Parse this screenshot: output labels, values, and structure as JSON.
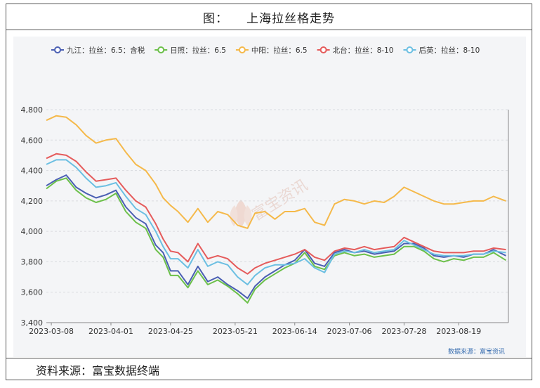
{
  "header": {
    "label": "图：",
    "title": "上海拉丝格走势"
  },
  "footer": {
    "source_label": "资料来源：富宝数据终端"
  },
  "watermark": {
    "text": "富宝资讯"
  },
  "source_note": "数据来源：富宝资讯",
  "chart_data": {
    "type": "line",
    "title": "上海拉丝格走势",
    "xlabel": "",
    "ylabel": "",
    "ylim": [
      3400,
      4800
    ],
    "yticks": [
      3400,
      3600,
      3800,
      4000,
      4200,
      4400,
      4600,
      4800
    ],
    "ytick_labels": [
      "3,400",
      "3,600",
      "3,800",
      "4,000",
      "4,200",
      "4,400",
      "4,600",
      "4,800"
    ],
    "xlim": [
      "2023-03-06",
      "2023-09-08"
    ],
    "xticks": [
      "2023-03-08",
      "2023-04-01",
      "2023-04-25",
      "2023-05-21",
      "2023-06-14",
      "2023-07-06",
      "2023-07-28",
      "2023-08-19"
    ],
    "grid": true,
    "legend_position": "top-left",
    "series": [
      {
        "name": "九江：拉丝：6.5：含税",
        "color": "#4a5fb3",
        "points": [
          [
            "2023-03-06",
            4300
          ],
          [
            "2023-03-10",
            4340
          ],
          [
            "2023-03-14",
            4370
          ],
          [
            "2023-03-18",
            4290
          ],
          [
            "2023-03-22",
            4250
          ],
          [
            "2023-03-26",
            4220
          ],
          [
            "2023-03-30",
            4240
          ],
          [
            "2023-04-03",
            4270
          ],
          [
            "2023-04-07",
            4160
          ],
          [
            "2023-04-11",
            4090
          ],
          [
            "2023-04-15",
            4050
          ],
          [
            "2023-04-19",
            3910
          ],
          [
            "2023-04-22",
            3860
          ],
          [
            "2023-04-25",
            3740
          ],
          [
            "2023-04-28",
            3740
          ],
          [
            "2023-05-02",
            3650
          ],
          [
            "2023-05-06",
            3770
          ],
          [
            "2023-05-10",
            3670
          ],
          [
            "2023-05-14",
            3700
          ],
          [
            "2023-05-18",
            3650
          ],
          [
            "2023-05-22",
            3610
          ],
          [
            "2023-05-26",
            3560
          ],
          [
            "2023-05-29",
            3640
          ],
          [
            "2023-06-02",
            3700
          ],
          [
            "2023-06-06",
            3740
          ],
          [
            "2023-06-10",
            3780
          ],
          [
            "2023-06-14",
            3810
          ],
          [
            "2023-06-18",
            3880
          ],
          [
            "2023-06-22",
            3790
          ],
          [
            "2023-06-26",
            3770
          ],
          [
            "2023-06-30",
            3860
          ],
          [
            "2023-07-04",
            3880
          ],
          [
            "2023-07-08",
            3860
          ],
          [
            "2023-07-12",
            3870
          ],
          [
            "2023-07-16",
            3850
          ],
          [
            "2023-07-20",
            3860
          ],
          [
            "2023-07-24",
            3870
          ],
          [
            "2023-07-28",
            3920
          ],
          [
            "2023-08-01",
            3920
          ],
          [
            "2023-08-05",
            3890
          ],
          [
            "2023-08-09",
            3840
          ],
          [
            "2023-08-13",
            3830
          ],
          [
            "2023-08-17",
            3840
          ],
          [
            "2023-08-21",
            3830
          ],
          [
            "2023-08-25",
            3850
          ],
          [
            "2023-08-29",
            3850
          ],
          [
            "2023-09-02",
            3880
          ],
          [
            "2023-09-07",
            3840
          ]
        ]
      },
      {
        "name": "日照：拉丝：6.5",
        "color": "#6cc04a",
        "points": [
          [
            "2023-03-06",
            4280
          ],
          [
            "2023-03-10",
            4330
          ],
          [
            "2023-03-14",
            4350
          ],
          [
            "2023-03-18",
            4270
          ],
          [
            "2023-03-22",
            4220
          ],
          [
            "2023-03-26",
            4190
          ],
          [
            "2023-03-30",
            4210
          ],
          [
            "2023-04-03",
            4250
          ],
          [
            "2023-04-07",
            4130
          ],
          [
            "2023-04-11",
            4060
          ],
          [
            "2023-04-15",
            4020
          ],
          [
            "2023-04-19",
            3880
          ],
          [
            "2023-04-22",
            3830
          ],
          [
            "2023-04-25",
            3710
          ],
          [
            "2023-04-28",
            3710
          ],
          [
            "2023-05-02",
            3630
          ],
          [
            "2023-05-06",
            3740
          ],
          [
            "2023-05-10",
            3650
          ],
          [
            "2023-05-14",
            3680
          ],
          [
            "2023-05-18",
            3640
          ],
          [
            "2023-05-22",
            3590
          ],
          [
            "2023-05-26",
            3530
          ],
          [
            "2023-05-29",
            3620
          ],
          [
            "2023-06-02",
            3680
          ],
          [
            "2023-06-06",
            3720
          ],
          [
            "2023-06-10",
            3760
          ],
          [
            "2023-06-14",
            3790
          ],
          [
            "2023-06-18",
            3860
          ],
          [
            "2023-06-22",
            3770
          ],
          [
            "2023-06-26",
            3750
          ],
          [
            "2023-06-30",
            3840
          ],
          [
            "2023-07-04",
            3860
          ],
          [
            "2023-07-08",
            3840
          ],
          [
            "2023-07-12",
            3850
          ],
          [
            "2023-07-16",
            3830
          ],
          [
            "2023-07-20",
            3840
          ],
          [
            "2023-07-24",
            3850
          ],
          [
            "2023-07-28",
            3900
          ],
          [
            "2023-08-01",
            3900
          ],
          [
            "2023-08-05",
            3870
          ],
          [
            "2023-08-09",
            3820
          ],
          [
            "2023-08-13",
            3800
          ],
          [
            "2023-08-17",
            3820
          ],
          [
            "2023-08-21",
            3810
          ],
          [
            "2023-08-25",
            3830
          ],
          [
            "2023-08-29",
            3830
          ],
          [
            "2023-09-02",
            3860
          ],
          [
            "2023-09-07",
            3810
          ]
        ]
      },
      {
        "name": "中阳：拉丝：6.5",
        "color": "#f5b94a",
        "points": [
          [
            "2023-03-06",
            4730
          ],
          [
            "2023-03-10",
            4760
          ],
          [
            "2023-03-14",
            4750
          ],
          [
            "2023-03-18",
            4700
          ],
          [
            "2023-03-22",
            4630
          ],
          [
            "2023-03-26",
            4580
          ],
          [
            "2023-03-30",
            4600
          ],
          [
            "2023-04-03",
            4610
          ],
          [
            "2023-04-07",
            4520
          ],
          [
            "2023-04-11",
            4440
          ],
          [
            "2023-04-15",
            4400
          ],
          [
            "2023-04-19",
            4310
          ],
          [
            "2023-04-22",
            4220
          ],
          [
            "2023-04-25",
            4170
          ],
          [
            "2023-04-28",
            4130
          ],
          [
            "2023-05-02",
            4060
          ],
          [
            "2023-05-06",
            4150
          ],
          [
            "2023-05-10",
            4060
          ],
          [
            "2023-05-14",
            4130
          ],
          [
            "2023-05-18",
            4110
          ],
          [
            "2023-05-22",
            4040
          ],
          [
            "2023-05-26",
            4020
          ],
          [
            "2023-05-29",
            4120
          ],
          [
            "2023-06-02",
            4130
          ],
          [
            "2023-06-06",
            4080
          ],
          [
            "2023-06-10",
            4130
          ],
          [
            "2023-06-14",
            4130
          ],
          [
            "2023-06-18",
            4150
          ],
          [
            "2023-06-22",
            4060
          ],
          [
            "2023-06-26",
            4040
          ],
          [
            "2023-06-30",
            4180
          ],
          [
            "2023-07-04",
            4210
          ],
          [
            "2023-07-08",
            4200
          ],
          [
            "2023-07-12",
            4180
          ],
          [
            "2023-07-16",
            4200
          ],
          [
            "2023-07-20",
            4190
          ],
          [
            "2023-07-24",
            4230
          ],
          [
            "2023-07-28",
            4290
          ],
          [
            "2023-08-01",
            4260
          ],
          [
            "2023-08-05",
            4230
          ],
          [
            "2023-08-09",
            4200
          ],
          [
            "2023-08-13",
            4180
          ],
          [
            "2023-08-17",
            4180
          ],
          [
            "2023-08-21",
            4190
          ],
          [
            "2023-08-25",
            4200
          ],
          [
            "2023-08-29",
            4200
          ],
          [
            "2023-09-02",
            4230
          ],
          [
            "2023-09-07",
            4200
          ]
        ]
      },
      {
        "name": "北台：拉丝：8-10",
        "color": "#e55b5b",
        "points": [
          [
            "2023-03-06",
            4480
          ],
          [
            "2023-03-10",
            4510
          ],
          [
            "2023-03-14",
            4500
          ],
          [
            "2023-03-18",
            4460
          ],
          [
            "2023-03-22",
            4390
          ],
          [
            "2023-03-26",
            4330
          ],
          [
            "2023-03-30",
            4340
          ],
          [
            "2023-04-03",
            4350
          ],
          [
            "2023-04-07",
            4270
          ],
          [
            "2023-04-11",
            4200
          ],
          [
            "2023-04-15",
            4160
          ],
          [
            "2023-04-19",
            4050
          ],
          [
            "2023-04-22",
            3950
          ],
          [
            "2023-04-25",
            3870
          ],
          [
            "2023-04-28",
            3860
          ],
          [
            "2023-05-02",
            3800
          ],
          [
            "2023-05-06",
            3920
          ],
          [
            "2023-05-10",
            3820
          ],
          [
            "2023-05-14",
            3840
          ],
          [
            "2023-05-18",
            3820
          ],
          [
            "2023-05-22",
            3760
          ],
          [
            "2023-05-26",
            3720
          ],
          [
            "2023-05-29",
            3760
          ],
          [
            "2023-06-02",
            3790
          ],
          [
            "2023-06-06",
            3810
          ],
          [
            "2023-06-10",
            3830
          ],
          [
            "2023-06-14",
            3850
          ],
          [
            "2023-06-18",
            3880
          ],
          [
            "2023-06-22",
            3830
          ],
          [
            "2023-06-26",
            3810
          ],
          [
            "2023-06-30",
            3870
          ],
          [
            "2023-07-04",
            3890
          ],
          [
            "2023-07-08",
            3880
          ],
          [
            "2023-07-12",
            3900
          ],
          [
            "2023-07-16",
            3880
          ],
          [
            "2023-07-20",
            3890
          ],
          [
            "2023-07-24",
            3900
          ],
          [
            "2023-07-28",
            3960
          ],
          [
            "2023-08-01",
            3930
          ],
          [
            "2023-08-05",
            3900
          ],
          [
            "2023-08-09",
            3870
          ],
          [
            "2023-08-13",
            3860
          ],
          [
            "2023-08-17",
            3860
          ],
          [
            "2023-08-21",
            3860
          ],
          [
            "2023-08-25",
            3870
          ],
          [
            "2023-08-29",
            3870
          ],
          [
            "2023-09-02",
            3890
          ],
          [
            "2023-09-07",
            3880
          ]
        ]
      },
      {
        "name": "后英：拉丝：8-10",
        "color": "#6bbfe2",
        "points": [
          [
            "2023-03-06",
            4440
          ],
          [
            "2023-03-10",
            4470
          ],
          [
            "2023-03-14",
            4470
          ],
          [
            "2023-03-18",
            4420
          ],
          [
            "2023-03-22",
            4350
          ],
          [
            "2023-03-26",
            4290
          ],
          [
            "2023-03-30",
            4300
          ],
          [
            "2023-04-03",
            4320
          ],
          [
            "2023-04-07",
            4230
          ],
          [
            "2023-04-11",
            4150
          ],
          [
            "2023-04-15",
            4110
          ],
          [
            "2023-04-19",
            4000
          ],
          [
            "2023-04-22",
            3900
          ],
          [
            "2023-04-25",
            3820
          ],
          [
            "2023-04-28",
            3820
          ],
          [
            "2023-05-02",
            3760
          ],
          [
            "2023-05-06",
            3880
          ],
          [
            "2023-05-10",
            3770
          ],
          [
            "2023-05-14",
            3800
          ],
          [
            "2023-05-18",
            3780
          ],
          [
            "2023-05-22",
            3700
          ],
          [
            "2023-05-26",
            3650
          ],
          [
            "2023-05-29",
            3710
          ],
          [
            "2023-06-02",
            3760
          ],
          [
            "2023-06-06",
            3780
          ],
          [
            "2023-06-10",
            3780
          ],
          [
            "2023-06-14",
            3790
          ],
          [
            "2023-06-18",
            3820
          ],
          [
            "2023-06-22",
            3760
          ],
          [
            "2023-06-26",
            3730
          ],
          [
            "2023-06-30",
            3850
          ],
          [
            "2023-07-04",
            3870
          ],
          [
            "2023-07-08",
            3860
          ],
          [
            "2023-07-12",
            3880
          ],
          [
            "2023-07-16",
            3860
          ],
          [
            "2023-07-20",
            3870
          ],
          [
            "2023-07-24",
            3880
          ],
          [
            "2023-07-28",
            3940
          ],
          [
            "2023-08-01",
            3910
          ],
          [
            "2023-08-05",
            3880
          ],
          [
            "2023-08-09",
            3850
          ],
          [
            "2023-08-13",
            3840
          ],
          [
            "2023-08-17",
            3840
          ],
          [
            "2023-08-21",
            3840
          ],
          [
            "2023-08-25",
            3850
          ],
          [
            "2023-08-29",
            3850
          ],
          [
            "2023-09-02",
            3870
          ],
          [
            "2023-09-07",
            3860
          ]
        ]
      }
    ]
  }
}
